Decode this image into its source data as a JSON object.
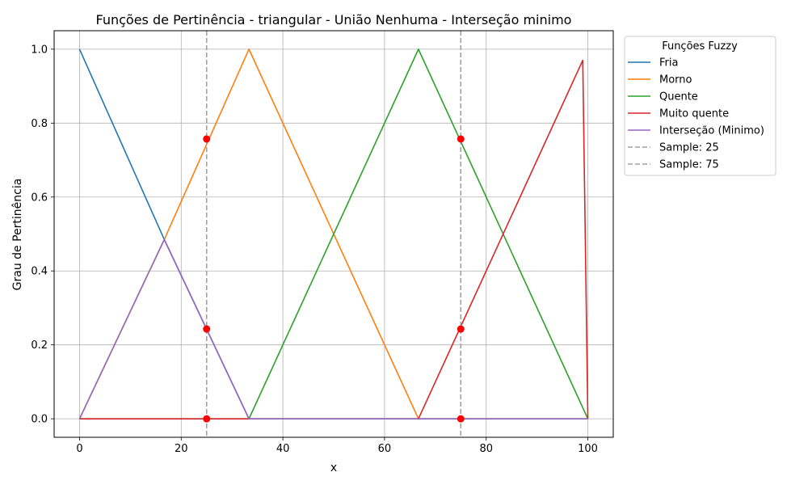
{
  "chart_data": {
    "type": "line",
    "title": "Funções de Pertinência - triangular - União Nenhuma - Interseção minimo",
    "xlabel": "x",
    "ylabel": "Grau de Pertinência",
    "xlim": [
      -5,
      105
    ],
    "ylim": [
      -0.05,
      1.05
    ],
    "xticks": [
      0,
      20,
      40,
      60,
      80,
      100
    ],
    "yticks": [
      0.0,
      0.2,
      0.4,
      0.6,
      0.8,
      1.0
    ],
    "xtick_labels": [
      "0",
      "20",
      "40",
      "60",
      "80",
      "100"
    ],
    "ytick_labels": [
      "0.0",
      "0.2",
      "0.4",
      "0.6",
      "0.8",
      "1.0"
    ],
    "grid": true,
    "legend": {
      "title": "Funções Fuzzy",
      "placement": "outside-right-top"
    },
    "series": [
      {
        "name": "Fria",
        "color": "#1f77b4",
        "points": [
          [
            0,
            1.0
          ],
          [
            16.67,
            0.485
          ],
          [
            33.33,
            0.0
          ],
          [
            100,
            0.0
          ]
        ]
      },
      {
        "name": "Morno",
        "color": "#ff7f0e",
        "points": [
          [
            0,
            0.0
          ],
          [
            16.67,
            0.485
          ],
          [
            33.33,
            1.0
          ],
          [
            66.67,
            0.0
          ],
          [
            100,
            0.0
          ]
        ]
      },
      {
        "name": "Quente",
        "color": "#2ca02c",
        "points": [
          [
            0,
            0.0
          ],
          [
            33.33,
            0.0
          ],
          [
            66.67,
            1.0
          ],
          [
            100,
            0.0
          ]
        ]
      },
      {
        "name": "Muito quente",
        "color": "#d62728",
        "points": [
          [
            0,
            0.0
          ],
          [
            66.67,
            0.0
          ],
          [
            99,
            0.97
          ],
          [
            100,
            0.0
          ]
        ]
      },
      {
        "name": "Interseção (Minimo)",
        "color": "#9467bd",
        "points": [
          [
            0,
            0.0
          ],
          [
            16.67,
            0.485
          ],
          [
            33.33,
            0.0
          ],
          [
            100,
            0.0
          ]
        ]
      }
    ],
    "vlines": [
      {
        "name": "Sample: 25",
        "x": 25,
        "color": "#a0a0a0"
      },
      {
        "name": "Sample: 75",
        "x": 75,
        "color": "#a0a0a0"
      }
    ],
    "markers": {
      "color": "#ff0000",
      "points": [
        [
          25,
          0.757
        ],
        [
          25,
          0.243
        ],
        [
          25,
          0.0
        ],
        [
          75,
          0.757
        ],
        [
          75,
          0.243
        ],
        [
          75,
          0.0
        ]
      ]
    }
  }
}
